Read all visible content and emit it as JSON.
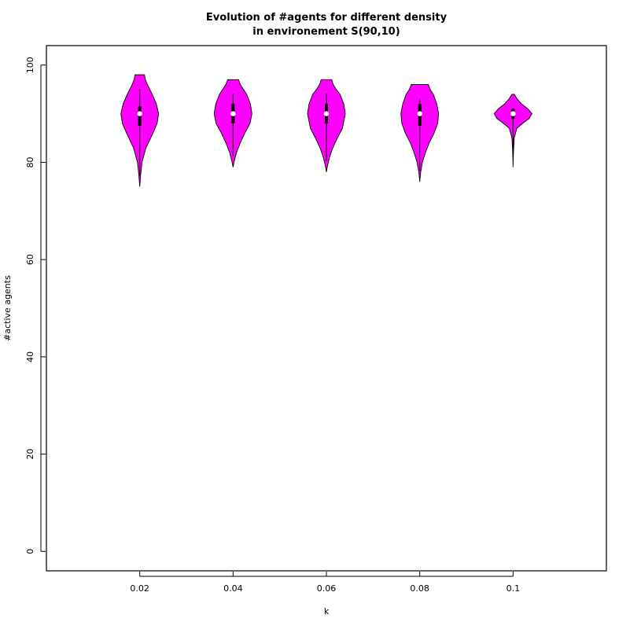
{
  "chart_data": {
    "type": "violin",
    "title_lines": [
      "Evolution of #agents for different density",
      "in environement S(90,10)"
    ],
    "xlabel": "k",
    "ylabel": "#active agents",
    "categories": [
      "0.02",
      "0.04",
      "0.06",
      "0.08",
      "0.1"
    ],
    "ylim": [
      -4,
      104
    ],
    "yticks": [
      0,
      20,
      40,
      60,
      80,
      100
    ],
    "grid": false,
    "fill_color": "#ff00ff",
    "series": [
      {
        "category": "0.02",
        "min": 75,
        "q1": 87.5,
        "median": 90,
        "q3": 91.5,
        "max": 98,
        "density": [
          [
            75,
            0
          ],
          [
            77,
            0.04
          ],
          [
            80,
            0.12
          ],
          [
            83,
            0.33
          ],
          [
            86,
            0.7
          ],
          [
            88,
            0.92
          ],
          [
            90,
            1.0
          ],
          [
            92,
            0.88
          ],
          [
            94,
            0.66
          ],
          [
            96,
            0.4
          ],
          [
            97,
            0.3
          ],
          [
            98,
            0.25
          ]
        ]
      },
      {
        "category": "0.04",
        "min": 79,
        "q1": 88,
        "median": 90,
        "q3": 92,
        "max": 97,
        "density": [
          [
            79,
            0
          ],
          [
            80,
            0.05
          ],
          [
            82,
            0.18
          ],
          [
            84,
            0.38
          ],
          [
            86,
            0.62
          ],
          [
            88,
            0.9
          ],
          [
            90,
            1.0
          ],
          [
            92,
            0.92
          ],
          [
            94,
            0.72
          ],
          [
            95,
            0.55
          ],
          [
            96,
            0.38
          ],
          [
            97,
            0.29
          ]
        ]
      },
      {
        "category": "0.06",
        "min": 78,
        "q1": 88,
        "median": 90,
        "q3": 92,
        "max": 97,
        "density": [
          [
            78,
            0
          ],
          [
            79,
            0.04
          ],
          [
            81,
            0.16
          ],
          [
            83,
            0.34
          ],
          [
            85,
            0.58
          ],
          [
            87,
            0.85
          ],
          [
            90,
            1.0
          ],
          [
            92,
            0.92
          ],
          [
            94,
            0.72
          ],
          [
            95,
            0.52
          ],
          [
            96,
            0.36
          ],
          [
            97,
            0.28
          ]
        ]
      },
      {
        "category": "0.08",
        "min": 76,
        "q1": 87.5,
        "median": 90,
        "q3": 92,
        "max": 96,
        "density": [
          [
            76,
            0
          ],
          [
            78,
            0.05
          ],
          [
            80,
            0.14
          ],
          [
            82,
            0.3
          ],
          [
            84,
            0.5
          ],
          [
            86,
            0.76
          ],
          [
            88,
            0.95
          ],
          [
            90,
            1.0
          ],
          [
            92,
            0.9
          ],
          [
            94,
            0.72
          ],
          [
            95,
            0.55
          ],
          [
            96,
            0.45
          ]
        ]
      },
      {
        "category": "0.1",
        "min": 79,
        "q1": 89,
        "median": 90,
        "q3": 91,
        "max": 94,
        "density": [
          [
            79,
            0
          ],
          [
            82,
            0.02
          ],
          [
            85,
            0.06
          ],
          [
            87,
            0.2
          ],
          [
            88,
            0.5
          ],
          [
            89,
            0.85
          ],
          [
            90,
            1.0
          ],
          [
            91,
            0.78
          ],
          [
            92,
            0.45
          ],
          [
            93,
            0.22
          ],
          [
            94,
            0.06
          ]
        ]
      }
    ]
  }
}
